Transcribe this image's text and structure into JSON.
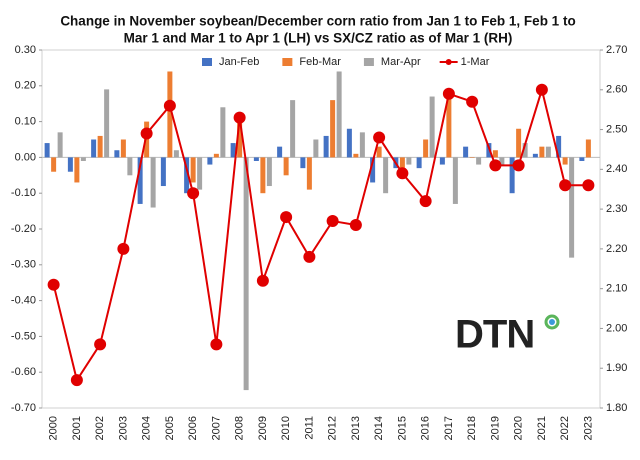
{
  "chart_data": {
    "type": "bar",
    "title": [
      "Change in November soybean/December corn ratio from Jan 1 to Feb 1, Feb 1 to",
      "Mar 1 and Mar 1 to Apr 1 (LH) vs SX/CZ ratio as of Mar 1 (RH)"
    ],
    "logo": "DTN",
    "legend": "top",
    "categories": [
      "2000",
      "2001",
      "2002",
      "2003",
      "2004",
      "2005",
      "2006",
      "2007",
      "2008",
      "2009",
      "2010",
      "2011",
      "2012",
      "2013",
      "2014",
      "2015",
      "2016",
      "2017",
      "2018",
      "2019",
      "2020",
      "2021",
      "2022",
      "2023"
    ],
    "series": [
      {
        "name": "Jan-Feb",
        "color": "#4472c4",
        "values": [
          0.04,
          -0.04,
          0.05,
          0.02,
          -0.13,
          -0.08,
          -0.1,
          -0.02,
          0.04,
          -0.01,
          0.03,
          -0.03,
          0.06,
          0.08,
          -0.07,
          -0.03,
          -0.03,
          -0.02,
          0.03,
          0.04,
          -0.1,
          0.01,
          0.06,
          -0.01
        ]
      },
      {
        "name": "Feb-Mar",
        "color": "#ed7d31",
        "values": [
          -0.04,
          -0.07,
          0.06,
          0.05,
          0.1,
          0.24,
          -0.07,
          0.01,
          0.12,
          -0.1,
          -0.05,
          -0.09,
          0.16,
          0.01,
          0.03,
          -0.04,
          0.05,
          0.18,
          0.0,
          0.02,
          0.08,
          0.03,
          -0.02,
          0.05
        ]
      },
      {
        "name": "Mar-Apr",
        "color": "#a5a5a5",
        "values": [
          0.07,
          -0.01,
          0.19,
          -0.05,
          -0.14,
          0.02,
          -0.09,
          0.14,
          -0.65,
          -0.08,
          0.16,
          0.05,
          0.24,
          0.07,
          -0.1,
          -0.02,
          0.17,
          -0.13,
          -0.02,
          -0.02,
          0.04,
          0.03,
          -0.28,
          null
        ]
      },
      {
        "name": "1-Mar",
        "color": "#e00000",
        "type": "line",
        "axis": "y2",
        "values": [
          2.11,
          1.87,
          1.96,
          2.2,
          2.49,
          2.56,
          2.34,
          1.96,
          2.53,
          2.12,
          2.28,
          2.18,
          2.27,
          2.26,
          2.48,
          2.39,
          2.32,
          2.59,
          2.57,
          2.41,
          2.41,
          2.6,
          2.36,
          2.36
        ]
      }
    ],
    "ylim": [
      -0.7,
      0.3
    ],
    "yticks": [
      {
        "value": 0.3,
        "label": "0.30"
      },
      {
        "value": 0.2,
        "label": "0.20"
      },
      {
        "value": 0.1,
        "label": "0.10"
      },
      {
        "value": 0,
        "label": "0.00"
      },
      {
        "value": -0.1,
        "label": "-0.10"
      },
      {
        "value": -0.2,
        "label": "-0.20"
      },
      {
        "value": -0.3,
        "label": "-0.30"
      },
      {
        "value": -0.4,
        "label": "-0.40"
      },
      {
        "value": -0.5,
        "label": "-0.50"
      },
      {
        "value": -0.6,
        "label": "-0.60"
      },
      {
        "value": -0.7,
        "label": "-0.70"
      }
    ],
    "y2lim": [
      1.8,
      2.7
    ],
    "y2ticks": [
      {
        "value": 2.7,
        "label": "2.70"
      },
      {
        "value": 2.6,
        "label": "2.60"
      },
      {
        "value": 2.5,
        "label": "2.50"
      },
      {
        "value": 2.4,
        "label": "2.40"
      },
      {
        "value": 2.3,
        "label": "2.30"
      },
      {
        "value": 2.2,
        "label": "2.20"
      },
      {
        "value": 2.1,
        "label": "2.10"
      },
      {
        "value": 2.0,
        "label": "2.00"
      },
      {
        "value": 1.9,
        "label": "1.90"
      },
      {
        "value": 1.8,
        "label": "1.80"
      }
    ]
  }
}
